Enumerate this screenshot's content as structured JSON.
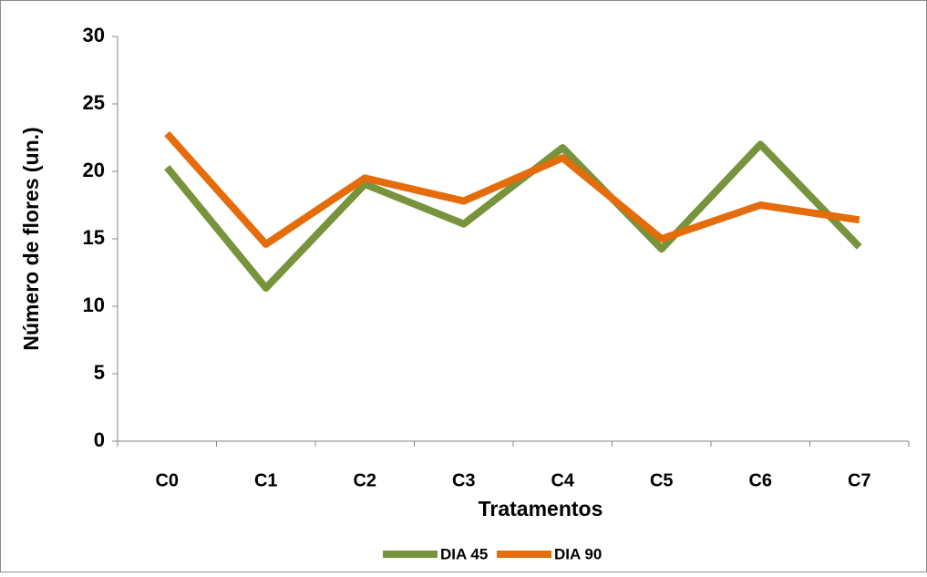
{
  "chart_data": {
    "type": "line",
    "x_label": "Tratamentos",
    "y_label": "Número de flores (un.)",
    "categories": [
      "C0",
      "C1",
      "C2",
      "C3",
      "C4",
      "C5",
      "C6",
      "C7"
    ],
    "series": [
      {
        "name": "DIA 45",
        "color": "#77933c",
        "values": [
          20.3,
          11.35,
          19.05,
          16.1,
          21.75,
          14.25,
          22.0,
          14.4
        ]
      },
      {
        "name": "DIA 90",
        "color": "#e46c0a",
        "values": [
          22.8,
          14.6,
          19.5,
          17.8,
          21.0,
          15.0,
          17.5,
          16.4
        ]
      }
    ],
    "ylim": [
      0,
      30
    ],
    "yticks": [
      0,
      5,
      10,
      15,
      20,
      25,
      30
    ],
    "grid": false,
    "legend": "bottom"
  }
}
